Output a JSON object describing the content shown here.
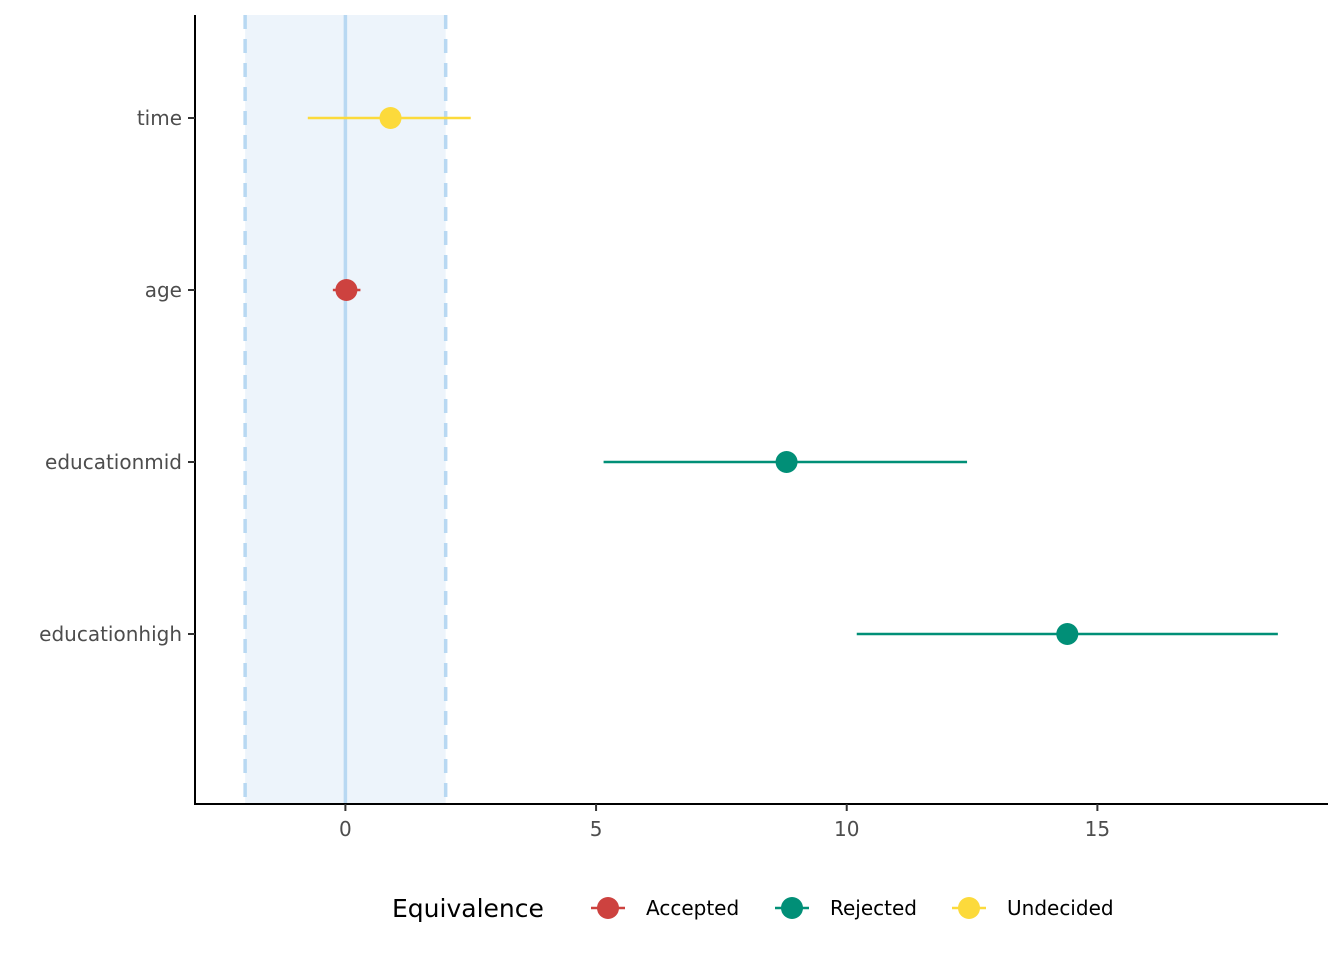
{
  "chart_data": {
    "type": "forest",
    "xlim": [
      -3,
      19.6
    ],
    "x_ticks": [
      0,
      5,
      10,
      15
    ],
    "x_tick_labels": [
      "0",
      "5",
      "10",
      "15"
    ],
    "rope": {
      "low": -2,
      "high": 2,
      "center": 0
    },
    "rows": [
      {
        "label": "time",
        "estimate": 0.9,
        "ci_low": -0.75,
        "ci_high": 2.5,
        "group": "Undecided"
      },
      {
        "label": "age",
        "estimate": 0.02,
        "ci_low": -0.25,
        "ci_high": 0.3,
        "group": "Accepted"
      },
      {
        "label": "educationmid",
        "estimate": 8.8,
        "ci_low": 5.15,
        "ci_high": 12.4,
        "group": "Rejected"
      },
      {
        "label": "educationhigh",
        "estimate": 14.4,
        "ci_low": 10.2,
        "ci_high": 18.6,
        "group": "Rejected"
      }
    ],
    "legend": {
      "title": "Equivalence",
      "position": "bottom",
      "items": [
        {
          "label": "Accepted",
          "color": "#CD423F"
        },
        {
          "label": "Rejected",
          "color": "#018F77"
        },
        {
          "label": "Undecided",
          "color": "#FCDA3B"
        }
      ]
    },
    "colors": {
      "rope_fill": "#EDF4FB",
      "rope_line": "#B8D8F2",
      "axis": "#000000",
      "tick_text": "#4d4d4d"
    },
    "grid": false
  }
}
